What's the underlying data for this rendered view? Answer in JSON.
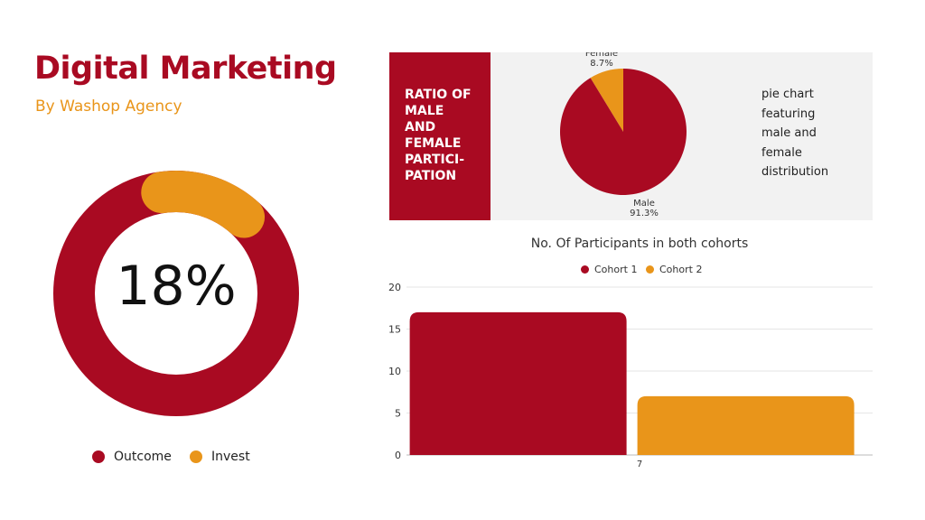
{
  "header": {
    "title": "Digital Marketing",
    "subtitle": "By Washop Agency"
  },
  "colors": {
    "primary": "#a90a22",
    "accent": "#e9951a",
    "panel": "#f2f2f2"
  },
  "chart_data": [
    {
      "type": "pie",
      "variant": "donut",
      "center_label": "18%",
      "labels": [
        "Outcome",
        "Invest"
      ],
      "values": [
        82,
        18
      ],
      "colors": [
        "#a90a22",
        "#e9951a"
      ],
      "legend": "bottom"
    },
    {
      "type": "pie",
      "title": "RATIO OF MALE AND FEMALE PARTICI- PATION",
      "title_lines": [
        "RATIO OF",
        "MALE",
        "AND",
        "FEMALE",
        "PARTICI-",
        "PATION"
      ],
      "description_lines": [
        "pie chart",
        "featuring",
        "male and",
        "female",
        "distribution"
      ],
      "labels": [
        "Female",
        "Male"
      ],
      "values": [
        8.7,
        91.3
      ],
      "value_labels": [
        "8.7%",
        "91.3%"
      ],
      "colors": [
        "#e9951a",
        "#a90a22"
      ]
    },
    {
      "type": "bar",
      "title": "No. Of Participants in both cohorts",
      "categories": [
        "7"
      ],
      "series": [
        {
          "name": "Cohort 1",
          "values": [
            17
          ],
          "color": "#a90a22"
        },
        {
          "name": "Cohort 2",
          "values": [
            7
          ],
          "color": "#e9951a"
        }
      ],
      "ylim": [
        0,
        20
      ],
      "yticks": [
        "0",
        "5",
        "10",
        "15",
        "20"
      ],
      "grid": true,
      "legend": "top"
    }
  ]
}
